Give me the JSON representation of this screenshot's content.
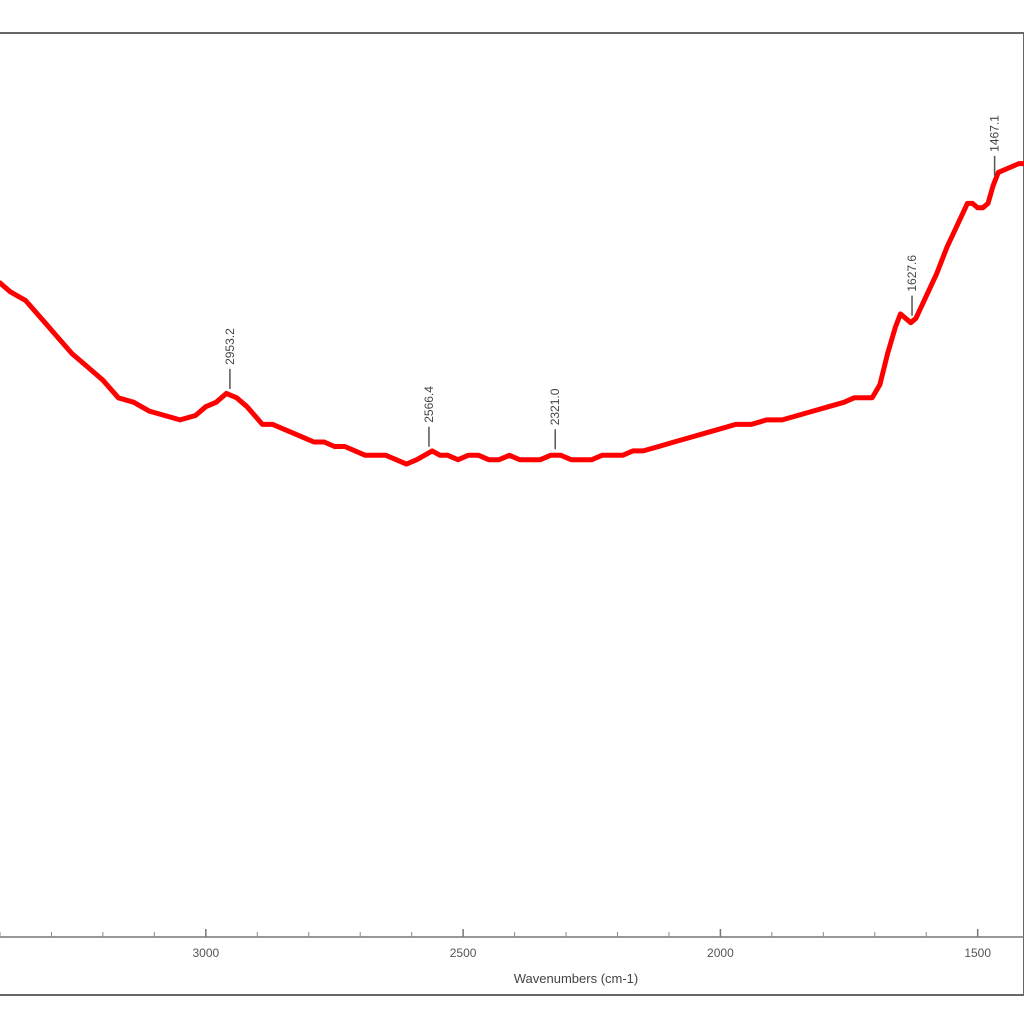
{
  "chart_data": {
    "type": "line",
    "title": "",
    "xlabel": "Wavenumbers (cm-1)",
    "ylabel": "",
    "x_reversed": true,
    "xlim": [
      3400,
      1410
    ],
    "ylim": [
      0,
      100
    ],
    "x_ticks": [
      3000,
      2500,
      2000,
      1500
    ],
    "x_tick_labels": [
      "3000",
      "2500",
      "2000",
      "1500"
    ],
    "grid": false,
    "line_color": "#ff0000",
    "series": [
      {
        "x": [
          3400,
          3380,
          3350,
          3320,
          3290,
          3260,
          3230,
          3200,
          3170,
          3140,
          3110,
          3080,
          3050,
          3020,
          3000,
          2980,
          2960,
          2940,
          2920,
          2905,
          2890,
          2870,
          2850,
          2830,
          2810,
          2790,
          2770,
          2750,
          2730,
          2710,
          2690,
          2670,
          2650,
          2630,
          2610,
          2590,
          2575,
          2560,
          2545,
          2530,
          2510,
          2490,
          2470,
          2450,
          2430,
          2410,
          2390,
          2370,
          2350,
          2330,
          2310,
          2290,
          2270,
          2250,
          2230,
          2210,
          2190,
          2170,
          2150,
          2120,
          2090,
          2060,
          2030,
          2000,
          1970,
          1940,
          1910,
          1880,
          1850,
          1820,
          1790,
          1760,
          1740,
          1730,
          1720,
          1705,
          1690,
          1675,
          1660,
          1650,
          1640,
          1630,
          1620,
          1600,
          1580,
          1560,
          1540,
          1520,
          1510,
          1500,
          1490,
          1480,
          1470,
          1460,
          1440,
          1420,
          1410
        ],
        "y": [
          74,
          72,
          70,
          66,
          62,
          58,
          55,
          52,
          48,
          47,
          45,
          44,
          43,
          44,
          46,
          47,
          49,
          48,
          46,
          44,
          42,
          42,
          41,
          40,
          39,
          38,
          38,
          37,
          37,
          36,
          35,
          35,
          35,
          34,
          33,
          34,
          35,
          36,
          35,
          35,
          34,
          35,
          35,
          34,
          34,
          35,
          34,
          34,
          34,
          35,
          35,
          34,
          34,
          34,
          35,
          35,
          35,
          36,
          36,
          37,
          38,
          39,
          40,
          41,
          42,
          42,
          43,
          43,
          44,
          45,
          46,
          47,
          48,
          48,
          48,
          48,
          51,
          58,
          64,
          67,
          66,
          65,
          66,
          71,
          76,
          82,
          87,
          92,
          92,
          91,
          91,
          92,
          96,
          99,
          100,
          101,
          101
        ]
      }
    ],
    "peak_annotations": [
      {
        "x": 2953.2,
        "label": "2953.2"
      },
      {
        "x": 2566.4,
        "label": "2566.4"
      },
      {
        "x": 2321.0,
        "label": "2321.0"
      },
      {
        "x": 1627.6,
        "label": "1627.6"
      },
      {
        "x": 1467.1,
        "label": "1467.1"
      }
    ]
  }
}
